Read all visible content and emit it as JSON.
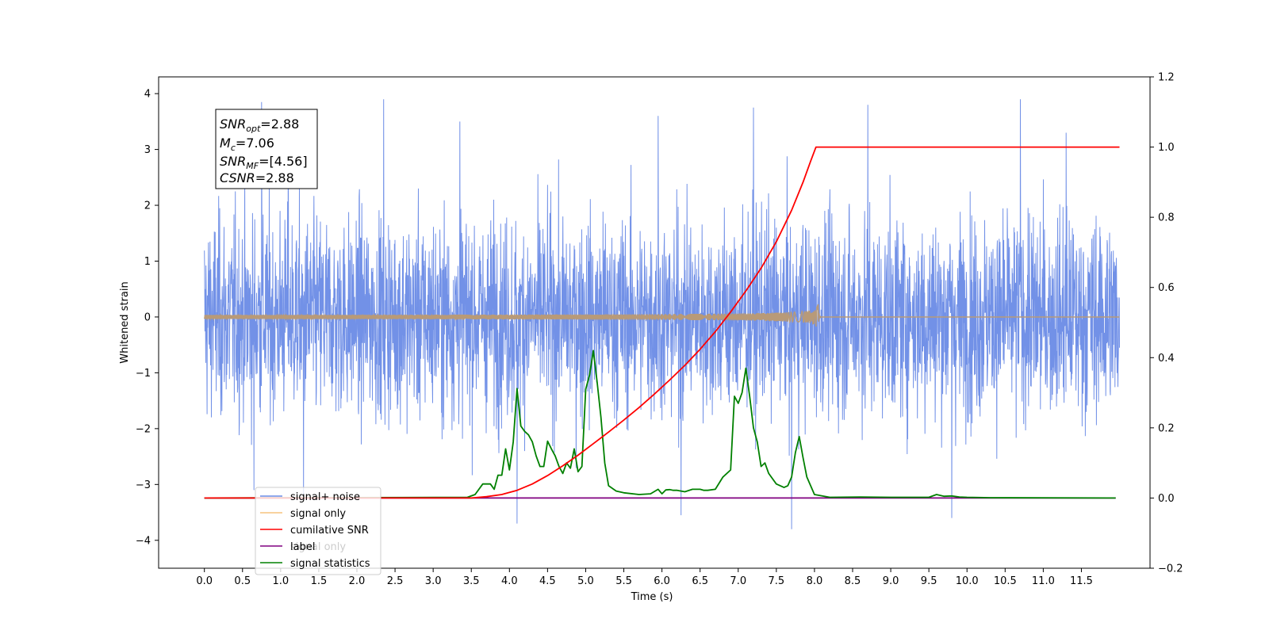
{
  "chart_data": {
    "type": "line",
    "xlabel": "Time (s)",
    "ylabel": "Whitened strain",
    "xlim": [
      -0.6,
      12.4
    ],
    "ylim": [
      -4.5,
      4.3
    ],
    "y2lim": [
      -0.2,
      1.2
    ],
    "x_ticks": [
      "0.0",
      "0.5",
      "1.0",
      "1.5",
      "2.0",
      "2.5",
      "3.0",
      "3.5",
      "4.0",
      "4.5",
      "5.0",
      "5.5",
      "6.0",
      "6.5",
      "7.0",
      "7.5",
      "8.0",
      "8.5",
      "9.0",
      "9.5",
      "10.0",
      "10.5",
      "11.0",
      "11.5"
    ],
    "y_ticks": [
      "4",
      "3",
      "2",
      "1",
      "0",
      "−1",
      "−2",
      "−3",
      "−4"
    ],
    "y2_ticks": [
      "1.2",
      "1.0",
      "0.8",
      "0.6",
      "0.4",
      "0.2",
      "0.0",
      "−0.2"
    ],
    "legend": {
      "placement": "lower-left",
      "entries": [
        "signal+ noise",
        "signal only",
        "cumilative SNR",
        "label",
        "signal statistics"
      ],
      "ghost_text": "signal only"
    },
    "annotation": {
      "snr_opt": "2.88",
      "mc": "7.06",
      "snr_mf": "[4.56]",
      "csnr": "2.88"
    },
    "colors": {
      "noise": "#6a8be6",
      "signal": "#f5b55f",
      "signal_overlap": "#b89a78",
      "cumulative_snr": "#ff0000",
      "label": "#800080",
      "statistics": "#008000"
    },
    "series": [
      {
        "name": "signal+ noise",
        "axis": "left",
        "description": "whitened strain noise, roughly ±2 with spikes to about ±3.9, from 0 to 12 s",
        "x_range": [
          0.0,
          12.0
        ],
        "typical_amplitude": 2.0,
        "spikes": [
          {
            "x": 0.75,
            "y": 3.85
          },
          {
            "x": 1.1,
            "y": 3.7
          },
          {
            "x": 2.35,
            "y": 3.9
          },
          {
            "x": 3.35,
            "y": 3.5
          },
          {
            "x": 5.95,
            "y": 3.6
          },
          {
            "x": 7.2,
            "y": 3.75
          },
          {
            "x": 8.7,
            "y": 3.8
          },
          {
            "x": 10.7,
            "y": 3.9
          },
          {
            "x": 11.3,
            "y": 3.3
          },
          {
            "x": 4.1,
            "y": -3.7
          },
          {
            "x": 6.25,
            "y": -3.55
          },
          {
            "x": 7.7,
            "y": -3.8
          },
          {
            "x": 9.8,
            "y": -3.6
          },
          {
            "x": 0.65,
            "y": -3.1
          },
          {
            "x": 1.3,
            "y": -3.2
          }
        ]
      },
      {
        "name": "signal only",
        "axis": "left",
        "description": "chirp signal growing toward merger at about 8.05 s",
        "x_range": [
          0.0,
          12.0
        ],
        "merger_time": 8.05,
        "peak_amplitude": 0.3
      },
      {
        "name": "cumilative SNR",
        "axis": "right",
        "x": [
          0.0,
          3.5,
          3.7,
          3.9,
          4.1,
          4.3,
          4.5,
          4.7,
          4.9,
          5.1,
          5.3,
          5.5,
          5.7,
          5.9,
          6.1,
          6.3,
          6.5,
          6.7,
          6.9,
          7.1,
          7.3,
          7.5,
          7.7,
          7.85,
          7.95,
          8.02,
          8.05,
          12.0
        ],
        "values": [
          0.0,
          0.0,
          0.004,
          0.01,
          0.022,
          0.04,
          0.064,
          0.092,
          0.122,
          0.155,
          0.188,
          0.222,
          0.258,
          0.296,
          0.336,
          0.378,
          0.424,
          0.474,
          0.53,
          0.59,
          0.655,
          0.73,
          0.82,
          0.9,
          0.96,
          1.0,
          1.0,
          1.0
        ]
      },
      {
        "name": "label",
        "axis": "right",
        "x": [
          0.0,
          11.95
        ],
        "values": [
          0.0,
          0.0
        ]
      },
      {
        "name": "signal statistics",
        "axis": "right",
        "x": [
          0.0,
          3.45,
          3.55,
          3.65,
          3.75,
          3.8,
          3.85,
          3.9,
          3.95,
          4.0,
          4.05,
          4.1,
          4.15,
          4.2,
          4.25,
          4.3,
          4.35,
          4.4,
          4.45,
          4.5,
          4.55,
          4.6,
          4.65,
          4.7,
          4.75,
          4.8,
          4.85,
          4.9,
          4.95,
          5.0,
          5.05,
          5.1,
          5.15,
          5.2,
          5.25,
          5.3,
          5.4,
          5.5,
          5.7,
          5.85,
          5.95,
          6.0,
          6.05,
          6.1,
          6.15,
          6.2,
          6.3,
          6.4,
          6.5,
          6.55,
          6.6,
          6.7,
          6.8,
          6.9,
          6.95,
          7.0,
          7.05,
          7.1,
          7.15,
          7.2,
          7.25,
          7.3,
          7.35,
          7.4,
          7.5,
          7.6,
          7.65,
          7.7,
          7.75,
          7.8,
          7.85,
          7.9,
          8.0,
          8.2,
          8.6,
          9.0,
          9.5,
          9.6,
          9.7,
          9.8,
          9.9,
          10.0,
          10.3,
          11.95
        ],
        "values": [
          0.0,
          0.002,
          0.01,
          0.04,
          0.04,
          0.025,
          0.065,
          0.065,
          0.14,
          0.08,
          0.16,
          0.312,
          0.205,
          0.19,
          0.18,
          0.16,
          0.12,
          0.09,
          0.09,
          0.162,
          0.14,
          0.12,
          0.09,
          0.07,
          0.1,
          0.085,
          0.14,
          0.075,
          0.09,
          0.31,
          0.35,
          0.42,
          0.33,
          0.23,
          0.1,
          0.035,
          0.02,
          0.015,
          0.01,
          0.012,
          0.025,
          0.012,
          0.023,
          0.024,
          0.022,
          0.022,
          0.018,
          0.025,
          0.025,
          0.022,
          0.022,
          0.025,
          0.06,
          0.08,
          0.29,
          0.27,
          0.3,
          0.37,
          0.29,
          0.2,
          0.16,
          0.09,
          0.1,
          0.07,
          0.04,
          0.03,
          0.035,
          0.06,
          0.13,
          0.175,
          0.115,
          0.06,
          0.01,
          0.002,
          0.003,
          0.002,
          0.002,
          0.01,
          0.005,
          0.006,
          0.003,
          0.002,
          0.001,
          0.0
        ]
      }
    ]
  }
}
